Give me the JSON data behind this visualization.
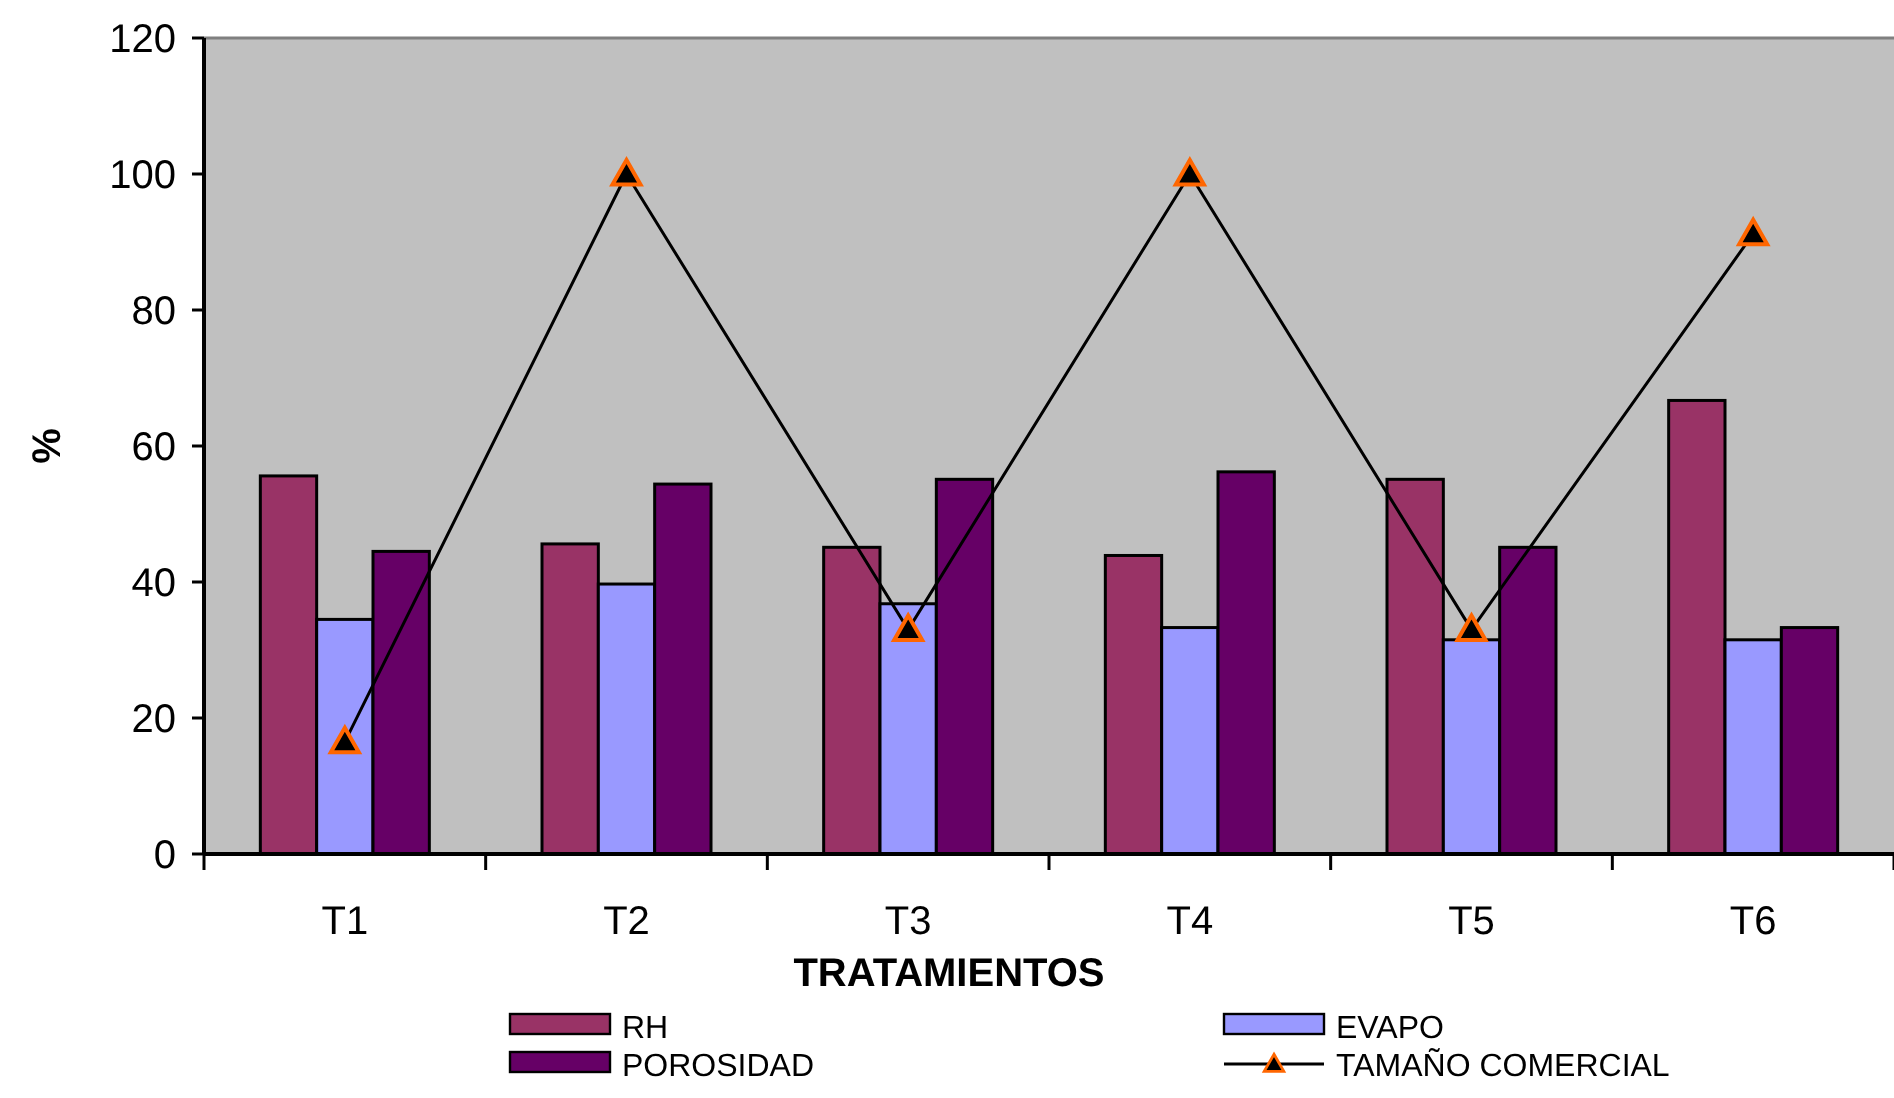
{
  "chart_data": {
    "type": "bar",
    "xlabel": "TRATAMIENTOS",
    "ylabel": "%",
    "categories": [
      "T1",
      "T2",
      "T3",
      "T4",
      "T5",
      "T6"
    ],
    "series": [
      {
        "name": "RH",
        "color": "#993366",
        "values": [
          55.6,
          45.6,
          45.1,
          43.9,
          55.1,
          66.7
        ]
      },
      {
        "name": "EVAPO",
        "color": "#9999ff",
        "values": [
          34.5,
          39.7,
          36.8,
          33.3,
          31.5,
          31.5
        ]
      },
      {
        "name": "POROSIDAD",
        "color": "#660066",
        "values": [
          44.5,
          54.4,
          55.1,
          56.2,
          45.1,
          33.3
        ]
      },
      {
        "name": "TAMAÑO COMERCIAL",
        "type": "line",
        "color": "#000000",
        "values": [
          16.5,
          100,
          33,
          100,
          33,
          91.2
        ],
        "marker": "triangle"
      }
    ],
    "ylim": [
      0,
      120
    ],
    "yticks": [
      0,
      20,
      40,
      60,
      80,
      100,
      120
    ],
    "grid": false,
    "legend": "bottom"
  }
}
